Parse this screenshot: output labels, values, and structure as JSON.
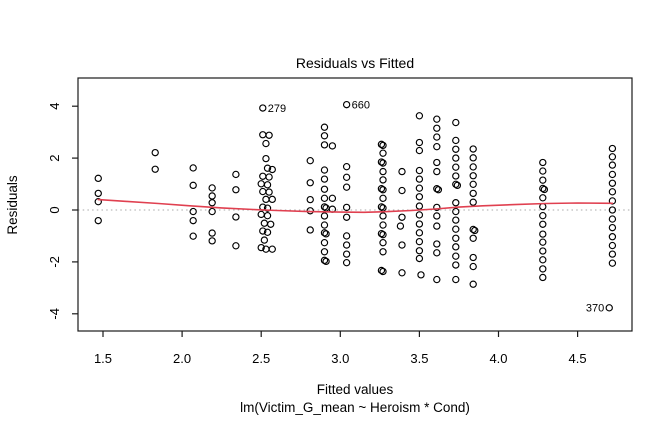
{
  "chart_data": {
    "type": "scatter",
    "title": "Residuals vs Fitted",
    "xlabel": "Fitted values",
    "xlabel2": "lm(Victim_G_mean ~ Heroism * Cond)",
    "ylabel": "Residuals",
    "x_ticks": [
      1.5,
      2.0,
      2.5,
      3.0,
      3.5,
      4.0,
      4.5
    ],
    "y_ticks": [
      -4,
      -2,
      0,
      2,
      4
    ],
    "xlim": [
      1.34,
      4.85
    ],
    "ylim": [
      -4.66,
      5.09
    ],
    "grid": false,
    "legend": "none",
    "point_style": {
      "shape": "open-circle",
      "color": "#000000"
    },
    "zero_line": {
      "y": 0,
      "style": "dotted",
      "color": "#a8a8a8"
    },
    "smooth_line": {
      "name": "lowess-smooth",
      "color": "#e04050",
      "points": [
        [
          1.47,
          0.4
        ],
        [
          1.65,
          0.33
        ],
        [
          1.85,
          0.25
        ],
        [
          2.05,
          0.16
        ],
        [
          2.25,
          0.08
        ],
        [
          2.45,
          0.02
        ],
        [
          2.6,
          -0.02
        ],
        [
          2.8,
          -0.06
        ],
        [
          3.0,
          -0.08
        ],
        [
          3.15,
          -0.09
        ],
        [
          3.3,
          -0.06
        ],
        [
          3.45,
          -0.02
        ],
        [
          3.6,
          0.04
        ],
        [
          3.75,
          0.11
        ],
        [
          3.9,
          0.16
        ],
        [
          4.1,
          0.21
        ],
        [
          4.3,
          0.25
        ],
        [
          4.5,
          0.27
        ],
        [
          4.72,
          0.26
        ]
      ]
    },
    "labeled_points": [
      {
        "label": "279",
        "x": 2.51,
        "y": 3.93,
        "label_side": "right"
      },
      {
        "label": "660",
        "x": 3.04,
        "y": 4.06,
        "label_side": "right"
      },
      {
        "label": "370",
        "x": 4.7,
        "y": -3.77,
        "label_side": "left"
      }
    ],
    "points": [
      [
        1.47,
        1.22
      ],
      [
        1.47,
        0.64
      ],
      [
        1.47,
        0.32
      ],
      [
        1.47,
        -0.41
      ],
      [
        1.83,
        2.21
      ],
      [
        1.83,
        1.57
      ],
      [
        2.07,
        1.62
      ],
      [
        2.07,
        0.95
      ],
      [
        2.07,
        -0.06
      ],
      [
        2.07,
        -0.41
      ],
      [
        2.07,
        -1.01
      ],
      [
        2.19,
        0.85
      ],
      [
        2.19,
        0.54
      ],
      [
        2.19,
        0.28
      ],
      [
        2.19,
        -0.06
      ],
      [
        2.19,
        -0.89
      ],
      [
        2.19,
        -1.19
      ],
      [
        2.34,
        1.37
      ],
      [
        2.34,
        0.78
      ],
      [
        2.34,
        -0.27
      ],
      [
        2.34,
        -1.38
      ],
      [
        2.51,
        2.9
      ],
      [
        2.55,
        2.88
      ],
      [
        2.53,
        2.56
      ],
      [
        2.53,
        1.98
      ],
      [
        2.54,
        1.61
      ],
      [
        2.57,
        1.56
      ],
      [
        2.51,
        1.3
      ],
      [
        2.55,
        1.27
      ],
      [
        2.5,
        1.01
      ],
      [
        2.54,
        0.97
      ],
      [
        2.51,
        0.71
      ],
      [
        2.55,
        0.69
      ],
      [
        2.53,
        0.41
      ],
      [
        2.57,
        0.41
      ],
      [
        2.51,
        0.11
      ],
      [
        2.54,
        0.07
      ],
      [
        2.5,
        -0.17
      ],
      [
        2.54,
        -0.22
      ],
      [
        2.52,
        -0.51
      ],
      [
        2.56,
        -0.55
      ],
      [
        2.51,
        -0.81
      ],
      [
        2.54,
        -0.86
      ],
      [
        2.52,
        -1.16
      ],
      [
        2.5,
        -1.45
      ],
      [
        2.53,
        -1.51
      ],
      [
        2.57,
        -1.51
      ],
      [
        2.81,
        1.9
      ],
      [
        2.81,
        1.05
      ],
      [
        2.81,
        0.4
      ],
      [
        2.81,
        -0.03
      ],
      [
        2.81,
        -0.77
      ],
      [
        2.9,
        3.19
      ],
      [
        2.9,
        2.86
      ],
      [
        2.9,
        2.51
      ],
      [
        2.9,
        1.54
      ],
      [
        2.9,
        1.19
      ],
      [
        2.9,
        0.8
      ],
      [
        2.9,
        0.45
      ],
      [
        2.9,
        0.12
      ],
      [
        2.91,
        0.08
      ],
      [
        2.9,
        -0.23
      ],
      [
        2.9,
        -0.58
      ],
      [
        2.9,
        -0.88
      ],
      [
        2.91,
        -0.92
      ],
      [
        2.9,
        -1.26
      ],
      [
        2.9,
        -1.61
      ],
      [
        2.9,
        -1.94
      ],
      [
        2.91,
        -1.98
      ],
      [
        2.95,
        2.47
      ],
      [
        2.95,
        0.45
      ],
      [
        2.95,
        0.03
      ],
      [
        3.04,
        1.67
      ],
      [
        3.04,
        1.26
      ],
      [
        3.04,
        0.88
      ],
      [
        3.04,
        0.1
      ],
      [
        3.04,
        -0.28
      ],
      [
        3.04,
        -1.0
      ],
      [
        3.04,
        -1.35
      ],
      [
        3.04,
        -1.7
      ],
      [
        3.04,
        -2.03
      ],
      [
        3.26,
        2.53
      ],
      [
        3.27,
        2.49
      ],
      [
        3.27,
        2.19
      ],
      [
        3.26,
        1.85
      ],
      [
        3.27,
        1.81
      ],
      [
        3.27,
        1.48
      ],
      [
        3.27,
        1.16
      ],
      [
        3.26,
        0.82
      ],
      [
        3.27,
        0.78
      ],
      [
        3.27,
        0.45
      ],
      [
        3.26,
        0.12
      ],
      [
        3.27,
        0.08
      ],
      [
        3.27,
        -0.23
      ],
      [
        3.27,
        -0.58
      ],
      [
        3.26,
        -0.91
      ],
      [
        3.27,
        -0.95
      ],
      [
        3.27,
        -1.26
      ],
      [
        3.27,
        -1.61
      ],
      [
        3.26,
        -2.33
      ],
      [
        3.27,
        -2.37
      ],
      [
        3.39,
        1.48
      ],
      [
        3.39,
        0.75
      ],
      [
        3.39,
        -0.28
      ],
      [
        3.38,
        -0.62
      ],
      [
        3.39,
        -1.35
      ],
      [
        3.39,
        -2.42
      ],
      [
        3.5,
        3.63
      ],
      [
        3.5,
        2.6
      ],
      [
        3.5,
        2.29
      ],
      [
        3.5,
        1.52
      ],
      [
        3.5,
        1.19
      ],
      [
        3.5,
        0.84
      ],
      [
        3.5,
        0.51
      ],
      [
        3.5,
        0.15
      ],
      [
        3.5,
        -0.19
      ],
      [
        3.5,
        -0.54
      ],
      [
        3.5,
        -0.88
      ],
      [
        3.5,
        -1.22
      ],
      [
        3.5,
        -1.57
      ],
      [
        3.5,
        -1.87
      ],
      [
        3.51,
        -2.5
      ],
      [
        3.61,
        3.5
      ],
      [
        3.61,
        3.15
      ],
      [
        3.61,
        2.81
      ],
      [
        3.61,
        2.44
      ],
      [
        3.61,
        1.83
      ],
      [
        3.61,
        1.48
      ],
      [
        3.61,
        0.82
      ],
      [
        3.62,
        0.78
      ],
      [
        3.61,
        0.1
      ],
      [
        3.61,
        -0.23
      ],
      [
        3.61,
        -0.62
      ],
      [
        3.61,
        -1.31
      ],
      [
        3.61,
        -1.65
      ],
      [
        3.61,
        -2.68
      ],
      [
        3.73,
        3.37
      ],
      [
        3.73,
        2.68
      ],
      [
        3.73,
        2.34
      ],
      [
        3.73,
        2.0
      ],
      [
        3.73,
        1.65
      ],
      [
        3.73,
        1.31
      ],
      [
        3.73,
        0.99
      ],
      [
        3.74,
        0.95
      ],
      [
        3.73,
        0.28
      ],
      [
        3.73,
        -0.06
      ],
      [
        3.73,
        -0.39
      ],
      [
        3.73,
        -0.74
      ],
      [
        3.73,
        -1.09
      ],
      [
        3.73,
        -1.42
      ],
      [
        3.73,
        -1.78
      ],
      [
        3.73,
        -2.12
      ],
      [
        3.73,
        -2.68
      ],
      [
        3.84,
        2.35
      ],
      [
        3.84,
        2.01
      ],
      [
        3.84,
        1.66
      ],
      [
        3.84,
        1.32
      ],
      [
        3.84,
        0.99
      ],
      [
        3.84,
        0.64
      ],
      [
        3.84,
        0.3
      ],
      [
        3.84,
        -0.75
      ],
      [
        3.85,
        -0.79
      ],
      [
        3.84,
        -1.09
      ],
      [
        3.84,
        -1.83
      ],
      [
        3.84,
        -2.18
      ],
      [
        3.84,
        -2.86
      ],
      [
        4.28,
        1.83
      ],
      [
        4.28,
        1.5
      ],
      [
        4.28,
        1.15
      ],
      [
        4.28,
        0.83
      ],
      [
        4.29,
        0.79
      ],
      [
        4.28,
        0.47
      ],
      [
        4.28,
        0.13
      ],
      [
        4.28,
        -0.22
      ],
      [
        4.28,
        -0.55
      ],
      [
        4.28,
        -0.93
      ],
      [
        4.28,
        -1.24
      ],
      [
        4.28,
        -1.58
      ],
      [
        4.28,
        -1.92
      ],
      [
        4.28,
        -2.27
      ],
      [
        4.28,
        -2.6
      ],
      [
        4.72,
        2.37
      ],
      [
        4.72,
        2.05
      ],
      [
        4.72,
        1.73
      ],
      [
        4.72,
        1.37
      ],
      [
        4.72,
        1.03
      ],
      [
        4.72,
        0.7
      ],
      [
        4.72,
        0.35
      ],
      [
        4.72,
        0.0
      ],
      [
        4.72,
        -0.35
      ],
      [
        4.72,
        -0.68
      ],
      [
        4.72,
        -1.03
      ],
      [
        4.72,
        -1.37
      ],
      [
        4.72,
        -1.7
      ],
      [
        4.72,
        -2.05
      ]
    ]
  }
}
